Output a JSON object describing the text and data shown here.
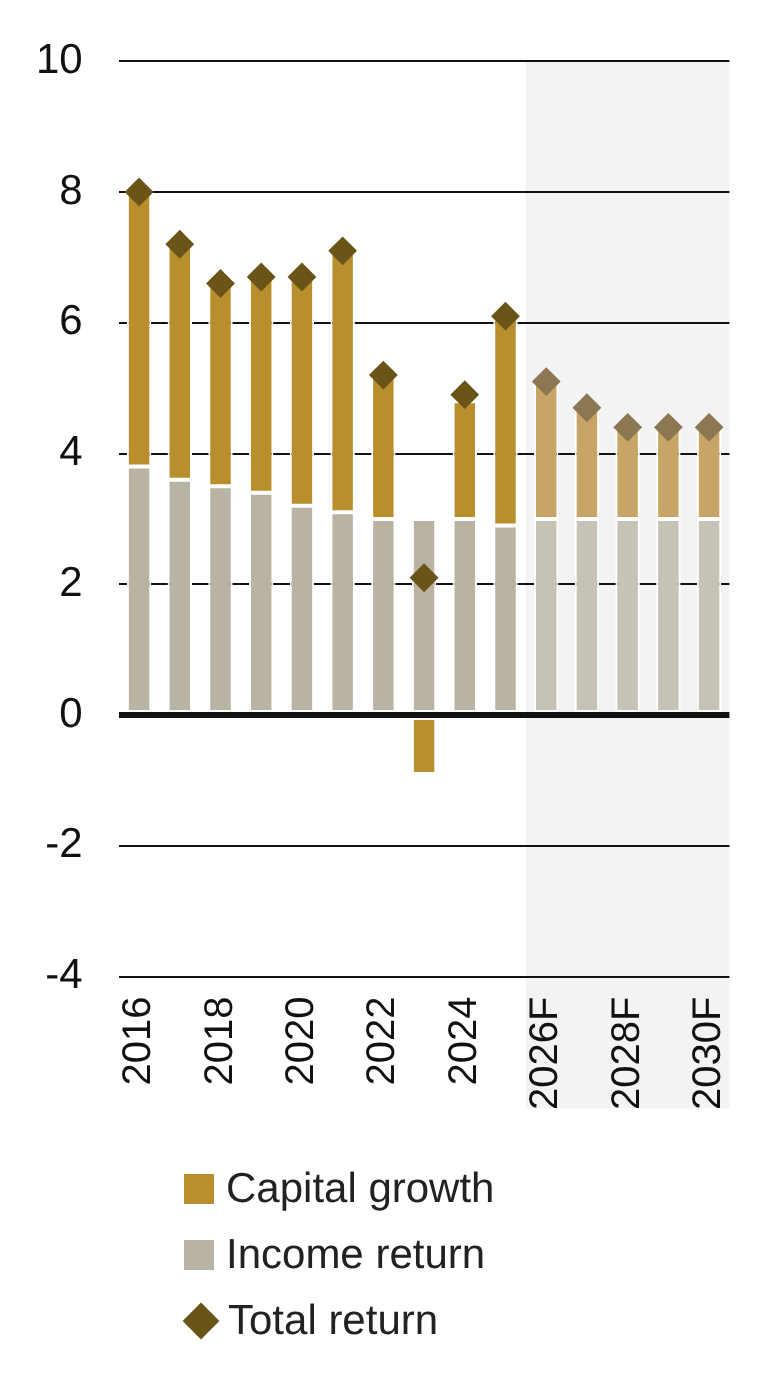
{
  "chart_data": {
    "type": "bar",
    "stacked": true,
    "categories": [
      "2016",
      null,
      "2018",
      null,
      "2020",
      null,
      "2022",
      null,
      "2024",
      null,
      "2026F",
      null,
      "2028F",
      null,
      "2030F"
    ],
    "series": [
      {
        "name": "Income return",
        "color": "#b9b3a4",
        "colors": [
          "#b9b3a4",
          "#b9b3a4",
          "#b9b3a4",
          "#b9b3a4",
          "#b9b3a4",
          "#b9b3a4",
          "#b9b3a4",
          "#b9b3a4",
          "#b9b3a4",
          "#b9b3a4",
          "#c6c3b6",
          "#c6c3b6",
          "#c6c3b6",
          "#c6c3b6",
          "#c6c3b6"
        ],
        "values": [
          3.8,
          3.6,
          3.5,
          3.4,
          3.2,
          3.1,
          3.0,
          3.0,
          3.0,
          2.9,
          3.0,
          3.0,
          3.0,
          3.0,
          3.0
        ]
      },
      {
        "name": "Capital growth",
        "color": "#b98f2e",
        "colors": [
          "#b98f2e",
          "#b98f2e",
          "#b98f2e",
          "#b98f2e",
          "#b98f2e",
          "#b98f2e",
          "#b98f2e",
          "#b98f2e",
          "#b98f2e",
          "#b98f2e",
          "#c8a566",
          "#c8a566",
          "#c8a566",
          "#c8a566",
          "#c8a566"
        ],
        "values": [
          4.2,
          3.6,
          3.1,
          3.3,
          3.5,
          4.0,
          2.3,
          -0.9,
          1.8,
          3.2,
          2.1,
          1.7,
          1.4,
          1.4,
          1.4
        ]
      },
      {
        "name": "Total return",
        "type": "scatter",
        "marker": "diamond",
        "color": "#6b5418",
        "colors": [
          "#6b5418",
          "#6b5418",
          "#6b5418",
          "#6b5418",
          "#6b5418",
          "#6b5418",
          "#6b5418",
          "#6b5418",
          "#6b5418",
          "#6b5418",
          "#8b7752",
          "#8b7752",
          "#8b7752",
          "#8b7752",
          "#8b7752"
        ],
        "values": [
          8.0,
          7.2,
          6.6,
          6.7,
          6.7,
          7.1,
          5.2,
          2.1,
          4.9,
          6.1,
          5.1,
          4.7,
          4.4,
          4.4,
          4.4
        ]
      }
    ],
    "ylim": [
      -4,
      10
    ],
    "yticks": [
      -4,
      -2,
      0,
      2,
      4,
      6,
      8,
      10
    ],
    "grid": "y",
    "legend": "bottom",
    "bands": [
      {
        "axis": "x",
        "from": "2026F",
        "to": "2030F",
        "color": "#f3f3f3"
      }
    ]
  }
}
